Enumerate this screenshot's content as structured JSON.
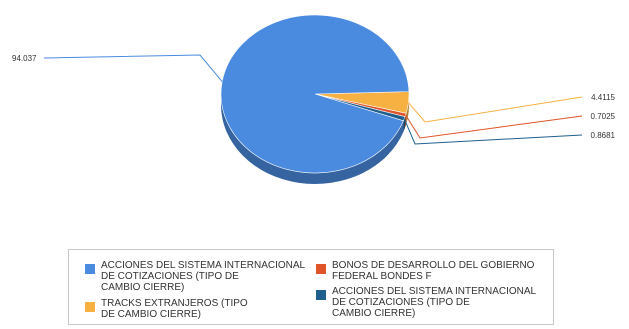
{
  "chart_data": {
    "type": "pie",
    "title": "",
    "slices": [
      {
        "name": "ACCIONES DEL SISTEMA INTERNACIONAL DE COTIZACIONES (TIPO DE CAMBIO CIERRE)",
        "value": 94.037,
        "label": "94.037",
        "color": "#4a8be0"
      },
      {
        "name": "TRACKS EXTRANJEROS (TIPO DE CAMBIO CIERRE)",
        "value": 4.4115,
        "label": "4.4115",
        "color": "#f6b142"
      },
      {
        "name": "BONOS DE DESARROLLO DEL GOBIERNO FEDERAL BONDES F",
        "value": 0.7025,
        "label": "0.7025",
        "color": "#e0542a"
      },
      {
        "name": "ACCIONES DEL SISTEMA INTERNACIONAL DE COTIZACIONES (TIPO DE CAMBIO CIERRE)",
        "value": 0.8681,
        "label": "0.8681",
        "color": "#1f5f8e"
      }
    ],
    "legend_position": "bottom"
  },
  "legend": [
    {
      "text": "ACCIONES DEL SISTEMA INTERNACIONAL\nDE COTIZACIONES (TIPO DE\nCAMBIO CIERRE)",
      "color": "#4a8be0"
    },
    {
      "text": "BONOS DE DESARROLLO DEL GOBIERNO\nFEDERAL BONDES F",
      "color": "#e0542a"
    },
    {
      "text": "TRACKS EXTRANJEROS (TIPO\nDE CAMBIO CIERRE)",
      "color": "#f6b142"
    },
    {
      "text": "ACCIONES DEL SISTEMA INTERNACIONAL\nDE COTIZACIONES (TIPO DE\nCAMBIO CIERRE)",
      "color": "#1f5f8e"
    }
  ]
}
